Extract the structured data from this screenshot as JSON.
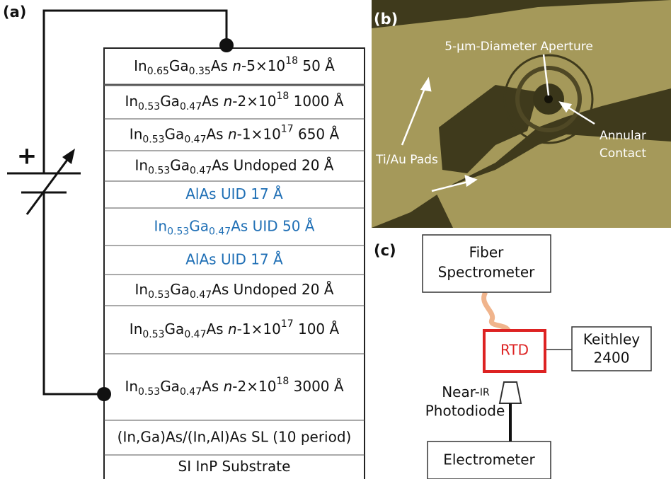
{
  "panel_a": {
    "label": "(a)",
    "battery_sign": "+",
    "layers": [
      [
        "In",
        "0.65",
        "Ga",
        "0.35",
        "As ",
        "n",
        "-5×10",
        "18",
        " 50 Å"
      ],
      [
        "In",
        "0.53",
        "Ga",
        "0.47",
        "As ",
        "n",
        "-2×10",
        "18",
        " 1000 Å"
      ],
      [
        "In",
        "0.53",
        "Ga",
        "0.47",
        "As ",
        "n",
        "-1×10",
        "17",
        " 650 Å"
      ],
      [
        "In",
        "0.53",
        "Ga",
        "0.47",
        "As Undoped 20 Å"
      ],
      [
        "AlAs UID 17 Å"
      ],
      [
        "In",
        "0.53",
        "Ga",
        "0.47",
        "As UID 50 Å"
      ],
      [
        "AlAs UID 17 Å"
      ],
      [
        "In",
        "0.53",
        "Ga",
        "0.47",
        "As Undoped 20 Å"
      ],
      [
        "In",
        "0.53",
        "Ga",
        "0.47",
        "As ",
        "n",
        "-1×10",
        "17",
        " 100 Å"
      ],
      [
        "In",
        "0.53",
        "Ga",
        "0.47",
        "As ",
        "n",
        "-2×10",
        "18",
        " 3000 Å"
      ],
      [
        "(In,Ga)As/(In,Al)As SL (10 period)"
      ],
      [
        "SI InP Substrate"
      ]
    ]
  },
  "panel_b": {
    "label": "(b)",
    "aperture": "5-μm-Diameter Aperture",
    "contact": [
      "Annular",
      "Contact"
    ],
    "pads": "Ti/Au Pads"
  },
  "panel_c": {
    "label": "(c)",
    "spectrometer": [
      "Fiber",
      "Spectrometer"
    ],
    "rtd": "RTD",
    "keithley": [
      "Keithley",
      "2400"
    ],
    "photodiode": [
      [
        "Near-",
        "IR"
      ],
      [
        "Photodiode"
      ]
    ],
    "electrometer": "Electrometer"
  }
}
